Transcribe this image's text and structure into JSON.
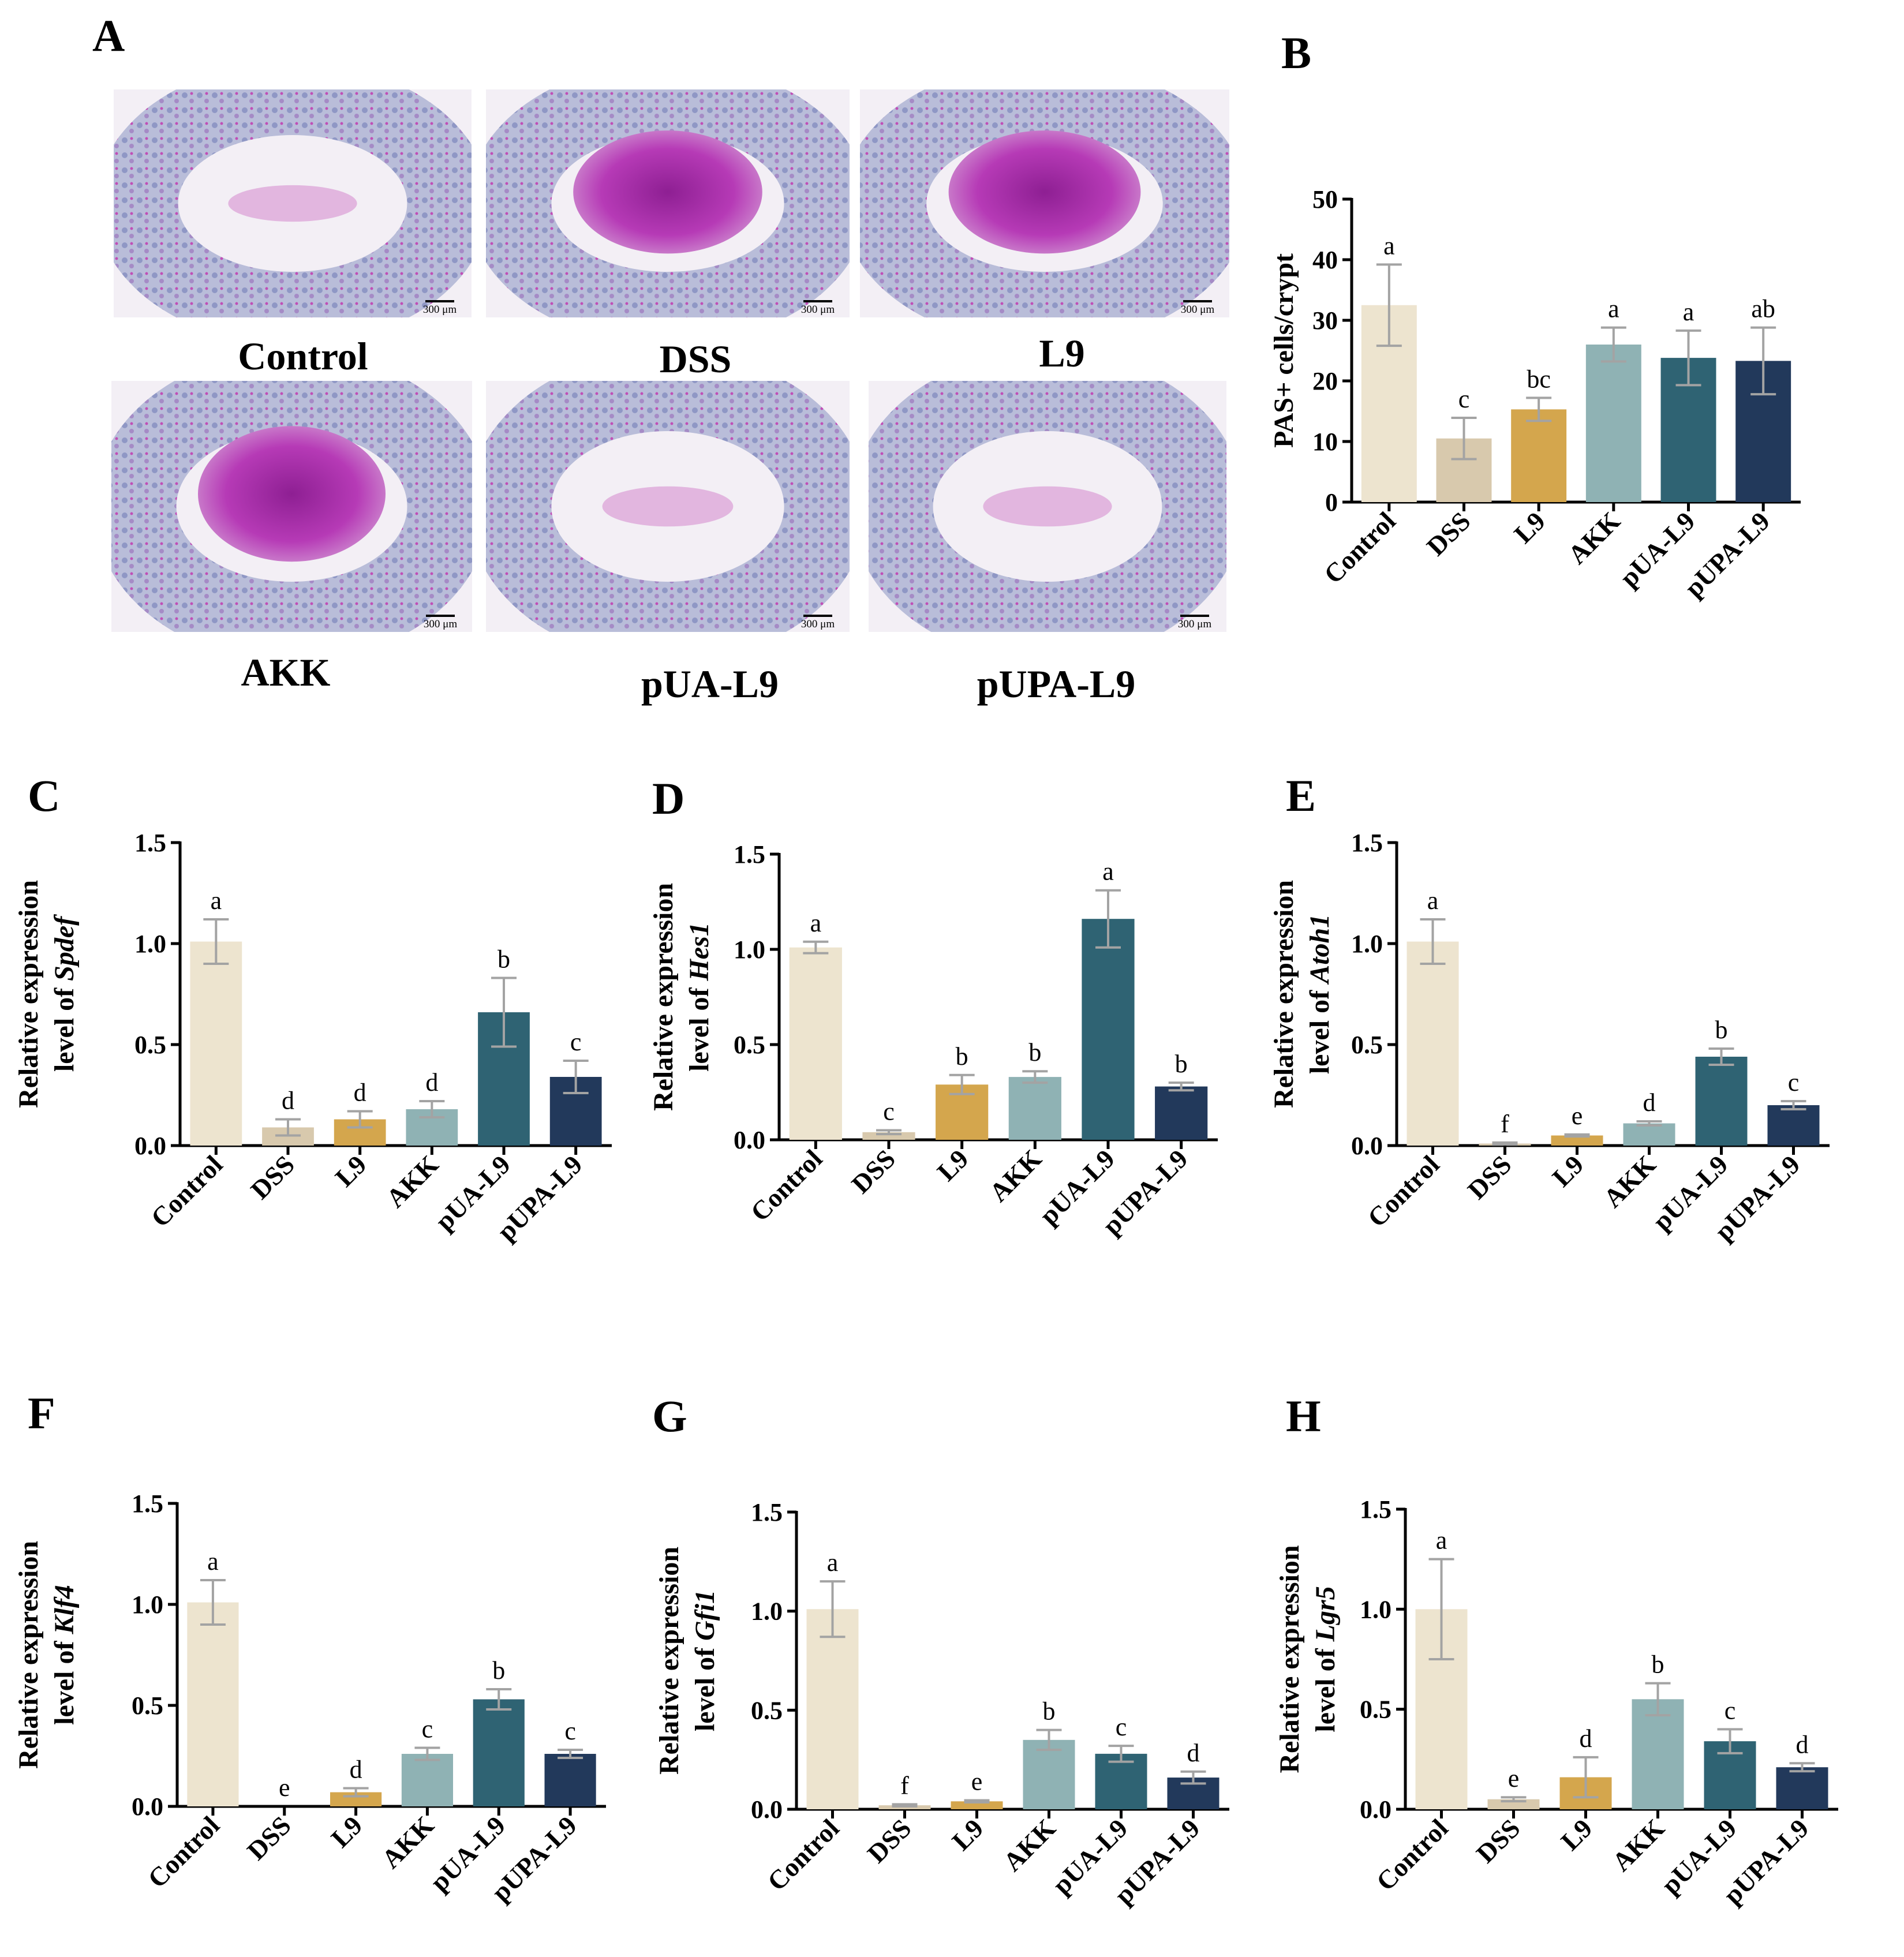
{
  "colors": {
    "Control": "#ede4cf",
    "DSS": "#d8c9ad",
    "L9": "#d4a64d",
    "AKK": "#8fb2b4",
    "pUA-L9": "#2f6373",
    "pUPA-L9": "#22395b",
    "error_bar": "#a3a3a3",
    "histology_bg": "#f3eff5",
    "histology_tissue": "#b3b7d4",
    "histology_stain": "#ad2fa9"
  },
  "panel_a": {
    "label": "A",
    "scale_bar_text": "300 μm",
    "images": [
      {
        "group": "Control",
        "scale": "300 μm"
      },
      {
        "group": "DSS",
        "scale": "300 μm"
      },
      {
        "group": "L9",
        "scale": "300 μm"
      },
      {
        "group": "AKK",
        "scale": "300 μm"
      },
      {
        "group": "pUA-L9",
        "scale": "300 μm"
      },
      {
        "group": "pUPA-L9",
        "scale": "300 μm"
      }
    ]
  },
  "chart_data": [
    {
      "panel": "B",
      "type": "bar",
      "title": "",
      "xlabel": "",
      "ylabel_lines": [
        "PAS+ cells/crypt"
      ],
      "ylabel_gene": "",
      "categories": [
        "Control",
        "DSS",
        "L9",
        "AKK",
        "pUA-L9",
        "pUPA-L9"
      ],
      "values": [
        32.5,
        10.5,
        15.3,
        26.0,
        23.8,
        23.3
      ],
      "errors": [
        6.7,
        3.4,
        1.9,
        2.8,
        4.5,
        5.5
      ],
      "letters": [
        "a",
        "c",
        "bc",
        "a",
        "a",
        "ab"
      ],
      "ylim": [
        0,
        50
      ],
      "yticks": [
        "0",
        "10",
        "20",
        "30",
        "40",
        "50"
      ],
      "tick_values": [
        0,
        10,
        20,
        30,
        40,
        50
      ]
    },
    {
      "panel": "C",
      "type": "bar",
      "xlabel": "",
      "ylabel_lines": [
        "Relative expression",
        "level of "
      ],
      "ylabel_gene": "Spdef",
      "categories": [
        "Control",
        "DSS",
        "L9",
        "AKK",
        "pUA-L9",
        "pUPA-L9"
      ],
      "values": [
        1.01,
        0.09,
        0.13,
        0.18,
        0.66,
        0.34
      ],
      "errors": [
        0.11,
        0.04,
        0.04,
        0.04,
        0.17,
        0.08
      ],
      "letters": [
        "a",
        "d",
        "d",
        "d",
        "b",
        "c"
      ],
      "ylim": [
        0,
        1.5
      ],
      "yticks": [
        "0.0",
        "0.5",
        "1.0",
        "1.5"
      ],
      "tick_values": [
        0,
        0.5,
        1.0,
        1.5
      ]
    },
    {
      "panel": "D",
      "type": "bar",
      "xlabel": "",
      "ylabel_lines": [
        "Relative expression",
        "level of "
      ],
      "ylabel_gene": "Hes1",
      "categories": [
        "Control",
        "DSS",
        "L9",
        "AKK",
        "pUA-L9",
        "pUPA-L9"
      ],
      "values": [
        1.01,
        0.04,
        0.29,
        0.33,
        1.16,
        0.28
      ],
      "errors": [
        0.03,
        0.01,
        0.05,
        0.03,
        0.15,
        0.02
      ],
      "letters": [
        "a",
        "c",
        "b",
        "b",
        "a",
        "b"
      ],
      "ylim": [
        0,
        1.5
      ],
      "yticks": [
        "0.0",
        "0.5",
        "1.0",
        "1.5"
      ],
      "tick_values": [
        0,
        0.5,
        1.0,
        1.5
      ]
    },
    {
      "panel": "E",
      "type": "bar",
      "xlabel": "",
      "ylabel_lines": [
        "Relative expression",
        "level of "
      ],
      "ylabel_gene": "Atoh1",
      "categories": [
        "Control",
        "DSS",
        "L9",
        "AKK",
        "pUA-L9",
        "pUPA-L9"
      ],
      "values": [
        1.01,
        0.01,
        0.05,
        0.11,
        0.44,
        0.2
      ],
      "errors": [
        0.11,
        0.005,
        0.005,
        0.01,
        0.04,
        0.02
      ],
      "letters": [
        "a",
        "f",
        "e",
        "d",
        "b",
        "c"
      ],
      "ylim": [
        0,
        1.5
      ],
      "yticks": [
        "0.0",
        "0.5",
        "1.0",
        "1.5"
      ],
      "tick_values": [
        0,
        0.5,
        1.0,
        1.5
      ]
    },
    {
      "panel": "F",
      "type": "bar",
      "xlabel": "",
      "ylabel_lines": [
        "Relative expression",
        "level of "
      ],
      "ylabel_gene": "Klf4",
      "categories": [
        "Control",
        "DSS",
        "L9",
        "AKK",
        "pUA-L9",
        "pUPA-L9"
      ],
      "values": [
        1.01,
        0.0,
        0.07,
        0.26,
        0.53,
        0.26
      ],
      "errors": [
        0.11,
        0.0,
        0.02,
        0.03,
        0.05,
        0.02
      ],
      "letters": [
        "a",
        "e",
        "d",
        "c",
        "b",
        "c"
      ],
      "ylim": [
        0,
        1.5
      ],
      "yticks": [
        "0.0",
        "0.5",
        "1.0",
        "1.5"
      ],
      "tick_values": [
        0,
        0.5,
        1.0,
        1.5
      ]
    },
    {
      "panel": "G",
      "type": "bar",
      "xlabel": "",
      "ylabel_lines": [
        "Relative expression",
        "level of "
      ],
      "ylabel_gene": "Gfi1",
      "categories": [
        "Control",
        "DSS",
        "L9",
        "AKK",
        "pUA-L9",
        "pUPA-L9"
      ],
      "values": [
        1.01,
        0.02,
        0.04,
        0.35,
        0.28,
        0.16
      ],
      "errors": [
        0.14,
        0.005,
        0.005,
        0.05,
        0.04,
        0.03
      ],
      "letters": [
        "a",
        "f",
        "e",
        "b",
        "c",
        "d"
      ],
      "ylim": [
        0,
        1.5
      ],
      "yticks": [
        "0.0",
        "0.5",
        "1.0",
        "1.5"
      ],
      "tick_values": [
        0,
        0.5,
        1.0,
        1.5
      ]
    },
    {
      "panel": "H",
      "type": "bar",
      "xlabel": "",
      "ylabel_lines": [
        "Relative expression",
        "level of "
      ],
      "ylabel_gene": "Lgr5",
      "categories": [
        "Control",
        "DSS",
        "L9",
        "AKK",
        "pUA-L9",
        "pUPA-L9"
      ],
      "values": [
        1.0,
        0.05,
        0.16,
        0.55,
        0.34,
        0.21
      ],
      "errors": [
        0.25,
        0.01,
        0.1,
        0.08,
        0.06,
        0.02
      ],
      "letters": [
        "a",
        "e",
        "d",
        "b",
        "c",
        "d"
      ],
      "ylim": [
        0,
        1.5
      ],
      "yticks": [
        "0.0",
        "0.5",
        "1.0",
        "1.5"
      ],
      "tick_values": [
        0,
        0.5,
        1.0,
        1.5
      ]
    }
  ]
}
